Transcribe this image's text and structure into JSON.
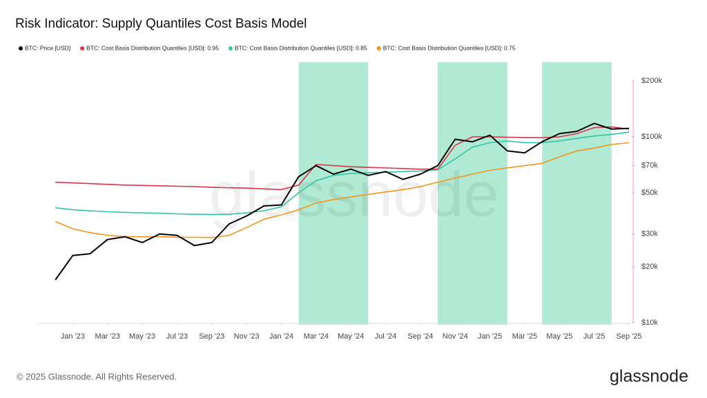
{
  "chart_data": {
    "type": "line",
    "title": "Risk Indicator: Supply Quantiles Cost Basis Model",
    "watermark": "glassnode",
    "footer": "© 2025 Glassnode. All Rights Reserved.",
    "brand": "glassnode",
    "y_scale": "log",
    "legend_position": "top-left",
    "x": [
      "2022-12",
      "2023-01",
      "2023-02",
      "2023-03",
      "2023-04",
      "2023-05",
      "2023-06",
      "2023-07",
      "2023-08",
      "2023-09",
      "2023-10",
      "2023-11",
      "2023-12",
      "2024-01",
      "2024-02",
      "2024-03",
      "2024-04",
      "2024-05",
      "2024-06",
      "2024-07",
      "2024-08",
      "2024-09",
      "2024-10",
      "2024-11",
      "2024-12",
      "2025-01",
      "2025-02",
      "2025-03",
      "2025-04",
      "2025-05",
      "2025-06",
      "2025-07",
      "2025-08",
      "2025-09"
    ],
    "xlim": [
      "2022-11",
      "2025-09"
    ],
    "xticks": [
      {
        "value": "2023-01",
        "label": "Jan '23"
      },
      {
        "value": "2023-03",
        "label": "Mar '23"
      },
      {
        "value": "2023-05",
        "label": "May '23"
      },
      {
        "value": "2023-07",
        "label": "Jul '23"
      },
      {
        "value": "2023-09",
        "label": "Sep '23"
      },
      {
        "value": "2023-11",
        "label": "Nov '23"
      },
      {
        "value": "2024-01",
        "label": "Jan '24"
      },
      {
        "value": "2024-03",
        "label": "Mar '24"
      },
      {
        "value": "2024-05",
        "label": "May '24"
      },
      {
        "value": "2024-07",
        "label": "Jul '24"
      },
      {
        "value": "2024-09",
        "label": "Sep '24"
      },
      {
        "value": "2024-11",
        "label": "Nov '24"
      },
      {
        "value": "2025-01",
        "label": "Jan '25"
      },
      {
        "value": "2025-03",
        "label": "Mar '25"
      },
      {
        "value": "2025-05",
        "label": "May '25"
      },
      {
        "value": "2025-07",
        "label": "Jul '25"
      },
      {
        "value": "2025-09",
        "label": "Sep '25"
      }
    ],
    "ylim": [
      10000,
      200000
    ],
    "yticks": [
      {
        "value": 10000,
        "label": "$10k"
      },
      {
        "value": 20000,
        "label": "$20k"
      },
      {
        "value": 30000,
        "label": "$30k"
      },
      {
        "value": 50000,
        "label": "$50k"
      },
      {
        "value": 70000,
        "label": "$70k"
      },
      {
        "value": 100000,
        "label": "$100k"
      },
      {
        "value": 200000,
        "label": "$200k"
      }
    ],
    "shaded_ranges": [
      {
        "start": "2024-02",
        "end": "2024-06"
      },
      {
        "start": "2024-10",
        "end": "2025-02"
      },
      {
        "start": "2025-04",
        "end": "2025-08"
      }
    ],
    "shade_color": "#b0ead4",
    "series": [
      {
        "name": "BTC: Price [USD]",
        "color": "#000000",
        "values": [
          17000,
          23000,
          23500,
          28000,
          29000,
          27000,
          30000,
          29500,
          26000,
          27000,
          34000,
          37500,
          42500,
          43000,
          61000,
          70000,
          63000,
          67000,
          62000,
          65000,
          59000,
          63000,
          70000,
          97000,
          94000,
          102000,
          84000,
          82000,
          94000,
          104000,
          107000,
          118000,
          110000,
          111000
        ]
      },
      {
        "name": "BTC: Cost Basis Distribution Quantiles [USD]: 0.95",
        "color": "#d9344a",
        "values": [
          57000,
          56500,
          56000,
          55500,
          55000,
          54800,
          54500,
          54200,
          54000,
          53500,
          53200,
          53000,
          52500,
          52000,
          55000,
          71000,
          70000,
          69000,
          68500,
          68000,
          67500,
          67000,
          67000,
          90000,
          100000,
          100000,
          99500,
          99000,
          99000,
          100000,
          104000,
          112000,
          113000,
          110000
        ]
      },
      {
        "name": "BTC: Cost Basis Distribution Quantiles [USD]: 0.85",
        "color": "#2ec4a6",
        "values": [
          41500,
          40500,
          40000,
          39500,
          39200,
          39000,
          38800,
          38500,
          38300,
          38200,
          38300,
          39000,
          40000,
          42000,
          50000,
          58000,
          62000,
          63500,
          64000,
          64500,
          65000,
          65500,
          66500,
          76000,
          88000,
          93000,
          95000,
          93000,
          93000,
          95000,
          98000,
          101000,
          103000,
          106000
        ]
      },
      {
        "name": "BTC: Cost Basis Distribution Quantiles [USD]: 0.75",
        "color": "#f7931a",
        "values": [
          35000,
          32000,
          30500,
          29500,
          29000,
          29000,
          29000,
          28800,
          28800,
          28700,
          29500,
          32500,
          36000,
          38000,
          40500,
          44000,
          46000,
          47500,
          49000,
          50500,
          52000,
          54000,
          57000,
          60000,
          63000,
          66000,
          68000,
          70000,
          72000,
          78000,
          84000,
          87000,
          91000,
          93000
        ]
      }
    ]
  }
}
